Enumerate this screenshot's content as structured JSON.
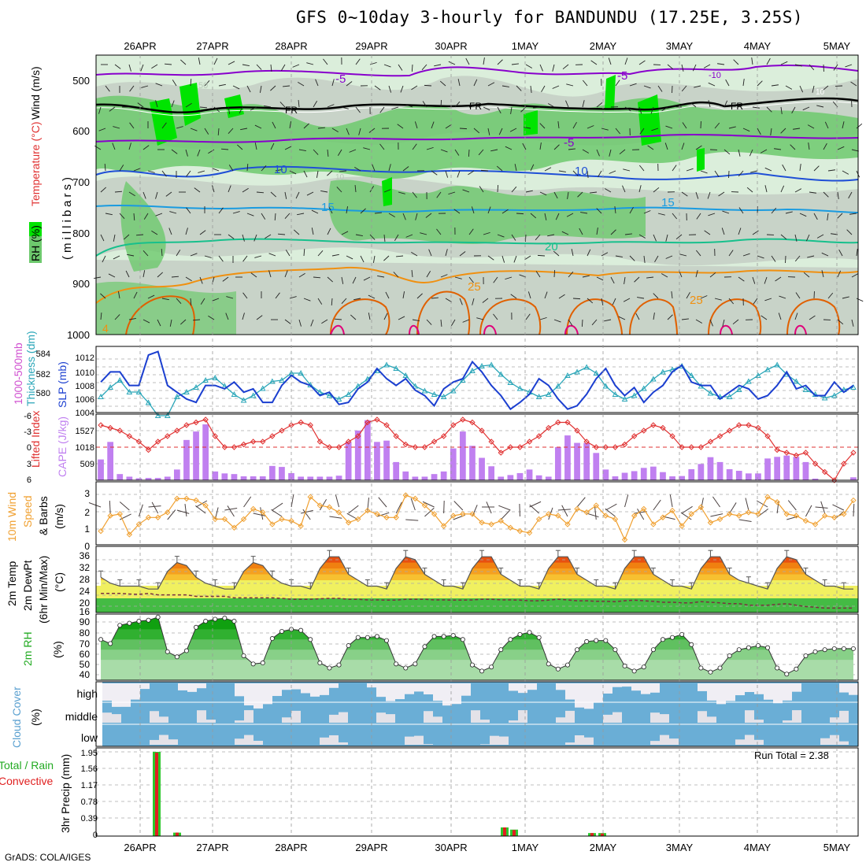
{
  "title": "GFS 0~10day 3-hourly for BANDUNDU (17.25E, 3.25S)",
  "footer": "GrADS: COLA/IGES",
  "colors": {
    "rh_light": "#dbeedb",
    "rh_mid": "#c8d3c8",
    "rh_green": "#6dc96d",
    "rh_bright": "#00e400",
    "temp_purple": "#8800cc",
    "temp_blue": "#1f4fd6",
    "temp_lblue": "#1a9be0",
    "temp_teal": "#17c08c",
    "temp_orange": "#f09010",
    "temp_dorange": "#e06000",
    "temp_magenta": "#e0007a",
    "thickness": "#2aa6b8",
    "slp": "#1b3fd0",
    "lifted": "#e03030",
    "cape": "#c080f0",
    "wind": "#f0a030",
    "cloud": "#6aaed6",
    "cloud_clear": "#f0eef4",
    "precip_total": "#2cc82c",
    "precip_conv": "#e02020"
  },
  "date_labels": [
    "26APR",
    "27APR",
    "28APR",
    "29APR",
    "30APR",
    "1MAY",
    "2MAY",
    "3MAY",
    "4MAY",
    "5MAY"
  ],
  "panels": {
    "profile": {
      "legend_rh": "RH (%)",
      "legend_temp": "Temperature (°C)",
      "legend_wind": "Wind (m/s)",
      "ylabel": "(millibars)",
      "levels": [
        "500",
        "600",
        "700",
        "800",
        "900",
        "1000"
      ],
      "contour_labels": {
        "m5_a": "-5",
        "m5_b": "-5",
        "m5_c": "-5",
        "m10": "-10",
        "m10b": "10",
        "m10c": "10",
        "l50": "50",
        "l10d": "10",
        "l10e": "10",
        "fr1": "FR",
        "fr2": "FR",
        "fr3": "FR",
        "t10a": "10",
        "t10b": "10",
        "t15a": "15",
        "t15b": "15",
        "t20": "20",
        "t25a": "25",
        "t25b": "25",
        "t4": "4"
      }
    },
    "thickness": {
      "label1": "1000-500mb",
      "label2": "Thickness (dm)",
      "label3": "SLP (mb)",
      "left_ticks": [
        "584",
        "582",
        "580"
      ],
      "right_ticks": [
        "1012",
        "1010",
        "1008",
        "1006",
        "1004"
      ]
    },
    "lifted": {
      "label1": "Lifted Index",
      "label2": "CAPE (J/kg)",
      "left_ticks": [
        "-6",
        "-3",
        "0",
        "3",
        "6"
      ],
      "right_ticks": [
        "1527",
        "1018",
        "509"
      ]
    },
    "wind10": {
      "label1": "10m Wind",
      "label2": "Speed",
      "label3": "& Barbs",
      "unit": "(m/s)",
      "ticks": [
        "3",
        "2",
        "1",
        "0"
      ]
    },
    "temp2m": {
      "label1": "2m Temp",
      "label2": "2m DewPt",
      "label3": "(6hr Min/Max)",
      "unit": "(°C)",
      "ticks": [
        "36",
        "32",
        "28",
        "24",
        "20",
        "16"
      ]
    },
    "rh2m": {
      "label1": "2m RH",
      "unit": "(%)",
      "ticks": [
        "90",
        "80",
        "70",
        "60",
        "50",
        "40"
      ]
    },
    "cloud": {
      "label1": "Cloud Cover",
      "unit": "(%)",
      "rows": [
        "high",
        "middle",
        "low"
      ]
    },
    "precip": {
      "label1": "Total / Rain",
      "label2": "Convective",
      "ylabel": "3hr Precip (mm)",
      "run_total": "Run Total = 2.38",
      "ticks": [
        "1.95",
        "1.56",
        "1.17",
        "0.78",
        "0.39",
        "0"
      ]
    }
  },
  "chart_data": [
    {
      "type": "line",
      "title": "1000-500mb Thickness (dm) / SLP (mb)",
      "series": [
        {
          "name": "SLP (mb)",
          "values": [
            1008.5,
            1010,
            1010,
            1008,
            1008,
            1012.5,
            1013,
            1008,
            1007,
            1006,
            1005.5,
            1008,
            1008,
            1007.5,
            1008.5,
            1007,
            1007.5,
            1005.5,
            1005.5,
            1008,
            1009.5,
            1008.5,
            1008,
            1006.5,
            1007,
            1005.2,
            1005.5,
            1007.5,
            1008.5,
            1010.5,
            1009,
            1008,
            1009,
            1007.3,
            1006.5,
            1005,
            1007.5,
            1008.5,
            1009,
            1011.5,
            1010,
            1008,
            1006.5,
            1004.5,
            1005.5,
            1006.7,
            1009,
            1008,
            1006,
            1004.5,
            1005,
            1006.7,
            1009,
            1010.5,
            1008,
            1006.5,
            1007.7,
            1005.5,
            1007,
            1008,
            1010,
            1011,
            1008.5,
            1008,
            1008,
            1006,
            1007,
            1008,
            1007.5,
            1006,
            1006.5,
            1008,
            1010,
            1007.5,
            1008,
            1006.5,
            1006.5,
            1008.5,
            1007,
            1008
          ]
        },
        {
          "name": "1000-500mb Thickness (dm)",
          "values": [
            580.6,
            581.4,
            582.0,
            581.0,
            581.0,
            580.1,
            579.0,
            579.0,
            580.6,
            581.0,
            581.4,
            582.0,
            582.2,
            581.5,
            580.8,
            580.3,
            580.7,
            581.3,
            581.9,
            582.0,
            582.6,
            582.6,
            581.6,
            581.0,
            580.7,
            580.4,
            580.8,
            581.5,
            582.1,
            582.8,
            583.3,
            583.0,
            582.4,
            581.5,
            581.1,
            580.8,
            580.6,
            581.1,
            582.0,
            582.8,
            583.2,
            583.3,
            582.5,
            581.8,
            581.3,
            581.0,
            580.6,
            580.8,
            581.5,
            582.4,
            582.7,
            583.1,
            582.6,
            581.5,
            580.8,
            580.4,
            580.7,
            581.3,
            582.1,
            582.7,
            582.9,
            583.2,
            582.4,
            581.5,
            580.9,
            580.6,
            580.6,
            581.2,
            581.9,
            582.4,
            582.9,
            583.3,
            582.5,
            581.9,
            581.2,
            580.8,
            580.5,
            580.7,
            581.2,
            581.4
          ]
        }
      ],
      "ylim_left": [
        579,
        585
      ],
      "ylim_right": [
        1004,
        1014
      ]
    },
    {
      "type": "bar",
      "title": "Lifted Index / CAPE (J/kg)",
      "series": [
        {
          "name": "CAPE (J/kg)",
          "values": [
            640,
            1180,
            190,
            110,
            60,
            70,
            70,
            110,
            330,
            1240,
            1500,
            1720,
            270,
            210,
            190,
            120,
            120,
            120,
            440,
            410,
            220,
            110,
            110,
            110,
            110,
            140,
            1180,
            1530,
            1850,
            1180,
            1220,
            560,
            270,
            110,
            110,
            190,
            270,
            980,
            1500,
            1060,
            690,
            430,
            110,
            160,
            220,
            330,
            150,
            110,
            1020,
            1380,
            1150,
            1150,
            840,
            330,
            120,
            230,
            280,
            380,
            420,
            250,
            120,
            130,
            340,
            500,
            710,
            560,
            340,
            290,
            210,
            210,
            670,
            720,
            760,
            720,
            560,
            50,
            0,
            0,
            0,
            90
          ]
        },
        {
          "name": "Lifted Index",
          "values": [
            -4,
            -3.5,
            -3,
            -2,
            -1,
            0.5,
            -1,
            -2,
            -3,
            -4,
            -4.5,
            -5,
            -2,
            0,
            0,
            -0.5,
            -1,
            -1,
            -2,
            -3,
            -4,
            -4.5,
            -4,
            -1,
            0,
            0,
            -1,
            -2,
            -4.5,
            -5,
            -4,
            -2,
            -0.5,
            0,
            0,
            -1,
            -2,
            -4,
            -5,
            -4.5,
            -3,
            -1,
            1,
            0,
            0,
            -1,
            -2,
            -3.5,
            -4.5,
            -4.5,
            -3,
            -1,
            0,
            0,
            0,
            -0.5,
            -2,
            -3,
            -4,
            -3.5,
            -2,
            0,
            0,
            0,
            -1,
            -2,
            -3,
            -4,
            -4,
            -3.5,
            -2,
            0.5,
            1,
            1.5,
            1,
            3,
            4.5,
            6,
            3,
            1
          ]
        }
      ],
      "ylim_left": [
        6,
        -6
      ],
      "ylim_right": [
        0,
        2036
      ]
    },
    {
      "type": "line",
      "title": "10m Wind Speed (m/s)",
      "series": [
        {
          "name": "10m Wind Speed",
          "values": [
            0.8,
            1.7,
            1.8,
            0.6,
            1.2,
            1.6,
            1.6,
            1.9,
            2.7,
            2.7,
            2.6,
            2.3,
            1.5,
            1.5,
            1.0,
            1.5,
            2.1,
            1.9,
            1.2,
            1.5,
            1.4,
            1.1,
            2.8,
            2.3,
            2.2,
            1.9,
            1.3,
            1.5,
            2.0,
            1.8,
            1.6,
            1.6,
            2.9,
            2.7,
            2.3,
            1.8,
            1.1,
            1.7,
            1.8,
            1.8,
            1.3,
            1.2,
            1.4,
            1.0,
            0.8,
            0.7,
            1.5,
            1.8,
            1.7,
            1.2,
            2.1,
            1.9,
            2.3,
            1.7,
            1.5,
            0.3,
            1.7,
            2.1,
            1.2,
            1.6,
            2.0,
            1.1,
            1.8,
            2.2,
            1.3,
            1.5,
            1.8,
            1.7,
            1.9,
            1.8,
            2.8,
            2.5,
            1.8,
            1.7,
            1.4,
            1.2,
            1.7,
            1.6,
            1.8,
            2.6
          ]
        }
      ],
      "ylim": [
        0,
        3.5
      ]
    },
    {
      "type": "area",
      "title": "2m Temp / 2m DewPt (°C)",
      "series": [
        {
          "name": "2m Temp",
          "values": [
            27,
            25,
            24,
            24,
            24,
            23,
            23,
            29,
            32,
            31,
            27,
            25,
            24,
            23,
            23,
            29,
            32,
            31,
            27,
            25,
            24,
            24,
            23,
            30,
            34,
            34,
            28,
            26,
            24,
            24,
            23,
            30,
            34,
            33,
            28,
            26,
            24,
            24,
            23,
            30,
            34,
            34,
            28,
            26,
            24,
            24,
            23,
            30,
            34,
            34,
            28,
            26,
            24,
            24,
            23,
            30,
            34,
            34,
            28,
            26,
            24,
            24,
            23,
            30,
            34,
            34,
            28,
            26,
            25,
            24,
            23,
            30,
            34,
            33,
            28,
            26,
            24,
            24,
            23,
            23
          ]
        },
        {
          "name": "2m DewPt",
          "values": [
            21.5,
            21.5,
            21.5,
            21.3,
            21.2,
            21.5,
            21,
            21,
            21,
            21,
            20.5,
            20.5,
            20.5,
            20.5,
            20,
            20,
            20,
            20,
            20,
            19.8,
            19.5,
            19.5,
            19.5,
            19.7,
            19.8,
            19.8,
            19.5,
            19.5,
            19.3,
            19.3,
            19.2,
            19.2,
            19.5,
            19.5,
            19.5,
            19.3,
            19.3,
            19.2,
            19.2,
            19.3,
            19.5,
            19.5,
            19.3,
            19.3,
            19.2,
            19,
            19,
            19.2,
            19.5,
            19.3,
            19,
            19,
            18.8,
            18.8,
            18.7,
            19,
            19.2,
            19,
            18.8,
            18.5,
            18.5,
            18.3,
            18.3,
            18.7,
            18.5,
            18.3,
            18,
            18,
            17.5,
            17.5,
            17.5,
            17.8,
            18,
            17.5,
            17,
            16.8,
            16.5,
            16.5,
            16.5,
            16.5
          ]
        }
      ],
      "ylim": [
        15,
        37
      ]
    },
    {
      "type": "area",
      "title": "2m RH (%)",
      "series": [
        {
          "name": "2m RH",
          "values": [
            70,
            66,
            84,
            86,
            88,
            89,
            92,
            58,
            53,
            59,
            82,
            88,
            90,
            91,
            88,
            54,
            46,
            47,
            71,
            78,
            80,
            79,
            70,
            47,
            42,
            45,
            64,
            72,
            72,
            73,
            69,
            46,
            42,
            46,
            63,
            73,
            73,
            74,
            70,
            45,
            39,
            43,
            60,
            70,
            75,
            77,
            72,
            46,
            41,
            45,
            60,
            68,
            69,
            69,
            60,
            44,
            39,
            43,
            60,
            70,
            72,
            75,
            65,
            42,
            38,
            42,
            54,
            60,
            62,
            64,
            62,
            42,
            36,
            41,
            54,
            58,
            60,
            61,
            61,
            61
          ]
        }
      ],
      "ylim": [
        30,
        95
      ]
    },
    {
      "type": "bar",
      "title": "3hr Precip (mm)",
      "x": [
        "26APR",
        "26APR",
        "1MAY",
        "1MAY",
        "2MAY",
        "2MAY"
      ],
      "series": [
        {
          "name": "Total / Rain",
          "values": [
            1.95,
            0.08,
            0.2,
            0.15,
            0.07,
            0.07
          ]
        },
        {
          "name": "Convective",
          "values": [
            1.93,
            0.08,
            0.2,
            0.14,
            0.07,
            0.06
          ]
        }
      ],
      "ylim": [
        0,
        1.95
      ]
    }
  ]
}
